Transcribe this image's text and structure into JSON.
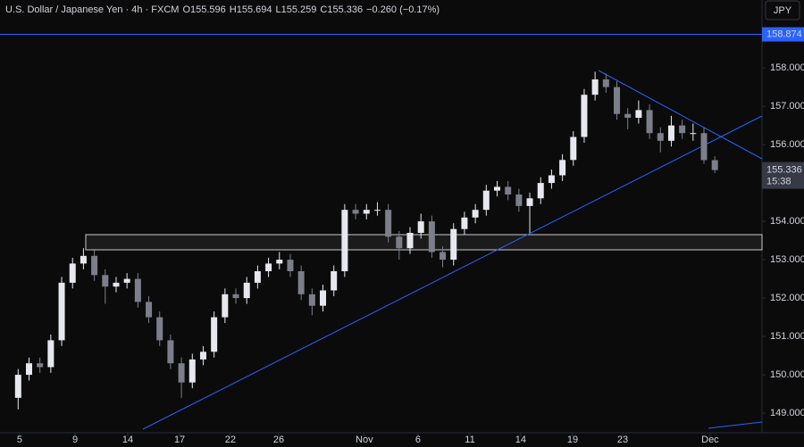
{
  "chart_data": {
    "type": "candlestick",
    "title": "U.S. Dollar / Japanese Yen · 4h · FXCM",
    "ohlc_labels": [
      "O",
      "H",
      "L",
      "C"
    ],
    "change": "−0.260 (−0.17%)",
    "currency": "JPY",
    "countdown": "15:38",
    "hline": 158.874,
    "up_color": "#e6e8ee",
    "down_color": "#7c7f89",
    "x": [
      5,
      8,
      11,
      14,
      17,
      20,
      23,
      26,
      29,
      32,
      35,
      38,
      41,
      44,
      47,
      50,
      53,
      56,
      59,
      62,
      65,
      68,
      71,
      74,
      77,
      80,
      83,
      86,
      89,
      92,
      95,
      98,
      101,
      104,
      107,
      110,
      113,
      116,
      119,
      122,
      125,
      128,
      131,
      134,
      137,
      140,
      143,
      146,
      149,
      152,
      155,
      158,
      161,
      164,
      167,
      170,
      173,
      176,
      179,
      182,
      185,
      188,
      191,
      194,
      197
    ],
    "open": [
      149.4,
      150.0,
      150.3,
      150.2,
      150.9,
      152.4,
      152.9,
      153.1,
      152.6,
      152.3,
      152.4,
      152.5,
      151.9,
      151.5,
      150.9,
      150.3,
      149.8,
      150.4,
      150.6,
      151.5,
      152.1,
      152.0,
      152.4,
      152.7,
      152.9,
      153.0,
      152.7,
      152.1,
      151.8,
      152.2,
      152.7,
      154.3,
      154.2,
      154.3,
      154.3,
      153.6,
      153.3,
      153.7,
      154.0,
      153.2,
      153.0,
      153.8,
      154.1,
      154.3,
      154.8,
      154.9,
      154.7,
      154.4,
      154.6,
      155.0,
      155.2,
      155.6,
      156.2,
      157.3,
      157.7,
      157.5,
      156.8,
      156.7,
      156.9,
      156.3,
      156.1,
      156.5,
      156.3,
      156.3,
      155.596
    ],
    "high": [
      150.15,
      150.45,
      150.45,
      151.05,
      152.55,
      153.05,
      153.3,
      153.25,
      152.75,
      152.55,
      152.65,
      152.65,
      152.05,
      151.65,
      151.05,
      150.45,
      150.55,
      150.75,
      151.65,
      152.25,
      152.25,
      152.55,
      152.85,
      153.05,
      153.2,
      153.15,
      152.85,
      152.25,
      152.35,
      152.85,
      154.45,
      154.45,
      154.45,
      154.5,
      154.45,
      153.75,
      153.85,
      154.2,
      154.15,
      153.35,
      153.95,
      154.25,
      154.45,
      154.95,
      155.05,
      155.05,
      154.85,
      154.75,
      155.15,
      155.35,
      155.75,
      156.35,
      157.45,
      157.9,
      157.85,
      157.65,
      156.95,
      157.15,
      157.05,
      156.45,
      156.75,
      156.65,
      156.55,
      156.45,
      155.694
    ],
    "low": [
      149.1,
      149.85,
      150.05,
      150.05,
      150.75,
      152.25,
      152.75,
      152.45,
      151.85,
      152.15,
      152.25,
      151.75,
      151.35,
      150.75,
      150.15,
      149.4,
      149.65,
      150.25,
      150.45,
      151.35,
      151.85,
      151.85,
      152.25,
      152.55,
      152.75,
      152.55,
      151.95,
      151.55,
      151.65,
      152.05,
      152.55,
      154.05,
      154.05,
      154.15,
      153.45,
      153.0,
      153.15,
      153.55,
      153.05,
      152.8,
      152.85,
      153.65,
      153.95,
      154.15,
      154.65,
      154.55,
      154.25,
      153.7,
      154.45,
      154.85,
      155.05,
      155.45,
      156.05,
      157.15,
      157.35,
      156.65,
      156.4,
      156.55,
      156.15,
      155.8,
      155.95,
      156.15,
      156.1,
      155.5,
      155.259
    ],
    "close": [
      150.0,
      150.3,
      150.2,
      150.9,
      152.4,
      152.9,
      153.1,
      152.6,
      152.3,
      152.4,
      152.5,
      151.9,
      151.5,
      150.9,
      150.3,
      149.8,
      150.4,
      150.6,
      151.5,
      152.1,
      152.0,
      152.4,
      152.7,
      152.9,
      153.0,
      152.7,
      152.1,
      151.8,
      152.2,
      152.7,
      154.3,
      154.2,
      154.3,
      154.3,
      153.6,
      153.3,
      153.7,
      154.0,
      153.2,
      153.0,
      153.8,
      154.1,
      154.3,
      154.8,
      154.9,
      154.7,
      154.4,
      154.6,
      155.0,
      155.2,
      155.6,
      156.2,
      157.3,
      157.7,
      157.5,
      156.8,
      156.7,
      156.9,
      156.3,
      156.1,
      156.5,
      156.3,
      156.3,
      155.596,
      155.336
    ],
    "xlim": [
      0,
      210
    ],
    "ylim": [
      148.49,
      159.77
    ],
    "xticks": [
      {
        "value": 5.4,
        "label": "5"
      },
      {
        "value": 20.7,
        "label": "9"
      },
      {
        "value": 35.2,
        "label": "14"
      },
      {
        "value": 49.5,
        "label": "17"
      },
      {
        "value": 63.5,
        "label": "22"
      },
      {
        "value": 76.8,
        "label": "26"
      },
      {
        "value": 100.4,
        "label": "Nov"
      },
      {
        "value": 115.2,
        "label": "6"
      },
      {
        "value": 129.5,
        "label": "11"
      },
      {
        "value": 143.5,
        "label": "14"
      },
      {
        "value": 157.8,
        "label": "19"
      },
      {
        "value": 171.6,
        "label": "23"
      },
      {
        "value": 195.7,
        "label": "Dec"
      }
    ],
    "yticks": [
      {
        "value": 149,
        "label": "149.000"
      },
      {
        "value": 150,
        "label": "150.000"
      },
      {
        "value": 151,
        "label": "151.000"
      },
      {
        "value": 152,
        "label": "152.000"
      },
      {
        "value": 153,
        "label": "153.000"
      },
      {
        "value": 154,
        "label": "154.000"
      },
      {
        "value": 155,
        "label": "155.000"
      },
      {
        "value": 156,
        "label": "156.000"
      },
      {
        "value": 157,
        "label": "157.000"
      },
      {
        "value": 158,
        "label": "158.000"
      }
    ]
  }
}
